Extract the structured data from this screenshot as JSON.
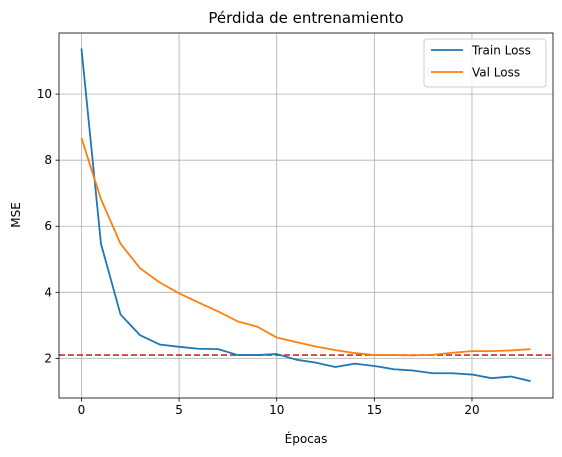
{
  "chart_data": {
    "type": "line",
    "title": "Pérdida de entrenamiento",
    "xlabel": "Épocas",
    "ylabel": "MSE",
    "xlim": [
      -1.15,
      24.15
    ],
    "ylim": [
      0.8,
      11.85
    ],
    "xticks": [
      0,
      5,
      10,
      15,
      20
    ],
    "yticks": [
      2,
      4,
      6,
      8,
      10
    ],
    "grid": true,
    "legend_position": "top-right",
    "x": [
      0,
      1,
      2,
      3,
      4,
      5,
      6,
      7,
      8,
      9,
      10,
      11,
      12,
      13,
      14,
      15,
      16,
      17,
      18,
      19,
      20,
      21,
      22,
      23
    ],
    "series": [
      {
        "name": "Train Loss",
        "color": "#1f77b4",
        "values": [
          11.38,
          5.47,
          3.33,
          2.7,
          2.42,
          2.35,
          2.29,
          2.28,
          2.1,
          2.1,
          2.13,
          1.96,
          1.87,
          1.74,
          1.84,
          1.77,
          1.67,
          1.63,
          1.55,
          1.55,
          1.51,
          1.4,
          1.45,
          1.31
        ]
      },
      {
        "name": "Val Loss",
        "color": "#ff7f0e",
        "values": [
          8.67,
          6.82,
          5.47,
          4.73,
          4.3,
          3.97,
          3.69,
          3.42,
          3.12,
          2.96,
          2.63,
          2.49,
          2.36,
          2.25,
          2.16,
          2.1,
          2.1,
          2.09,
          2.11,
          2.17,
          2.22,
          2.22,
          2.24,
          2.28
        ]
      }
    ],
    "reference_line": {
      "y": 2.1,
      "color": "#d62728",
      "style": "dashed"
    }
  }
}
